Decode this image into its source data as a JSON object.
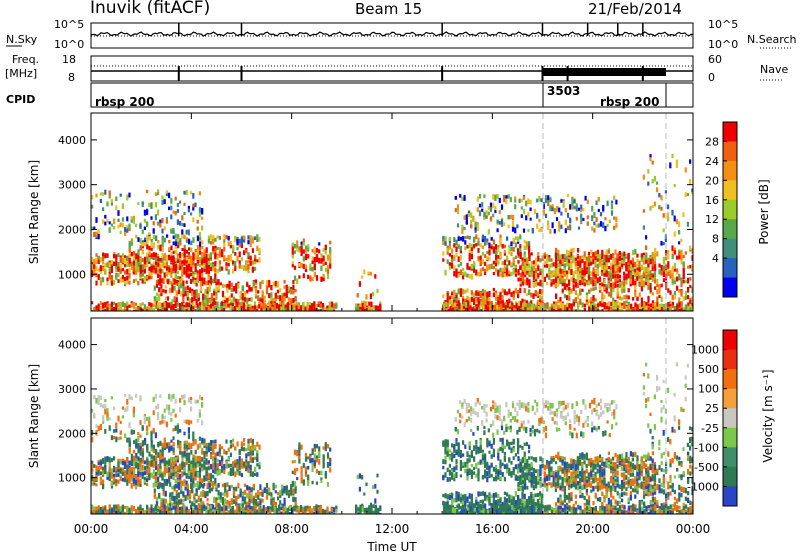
{
  "header": {
    "station": "Inuvik (fitACF)",
    "beam": "Beam 15",
    "date": "21/Feb/2014"
  },
  "noise_panel": {
    "left_label": "N.Sky",
    "right_label": "N.Search",
    "left_ticks": [
      "10^5",
      "10^0"
    ],
    "right_ticks": [
      "10^5",
      "10^0"
    ]
  },
  "freq_panel": {
    "left_label_1": "Freq.",
    "left_label_2": "[MHz]",
    "right_label": "Nave",
    "left_ticks": [
      "18",
      "8"
    ],
    "right_ticks": [
      "60",
      "0"
    ]
  },
  "cpid_panel": {
    "label": "CPID",
    "segments": [
      {
        "start_hour": 0,
        "end_hour": 18,
        "name": "rbsp 200"
      },
      {
        "start_hour": 18,
        "end_hour": 24,
        "name": "3503"
      },
      {
        "start_hour": 22,
        "end_hour": 24,
        "name": "rbsp 200"
      }
    ]
  },
  "chart_data": [
    {
      "type": "heatmap",
      "name": "power",
      "ylabel": "Slant Range [km]",
      "ylim": [
        180,
        4600
      ],
      "yticks": [
        "4000",
        "3000",
        "2000",
        "1000"
      ],
      "colorbar": {
        "label": "Power [dB]",
        "ticks": [
          "28",
          "24",
          "20",
          "16",
          "12",
          "8",
          "4"
        ],
        "colors": [
          "#0000ee",
          "#2a60c0",
          "#3f8f7a",
          "#5aa84a",
          "#9ccc2a",
          "#f0c020",
          "#f39010",
          "#f06010",
          "#ee0000"
        ]
      }
    },
    {
      "type": "heatmap",
      "name": "velocity",
      "ylabel": "Slant Range [km]",
      "ylim": [
        180,
        4600
      ],
      "yticks": [
        "4000",
        "3000",
        "2000",
        "1000"
      ],
      "colorbar": {
        "label": "Velocity [m s⁻¹]",
        "ticks": [
          "1000",
          "500",
          "100",
          "25",
          "-25",
          "-100",
          "-500",
          "-1000"
        ],
        "colors": [
          "#2846c8",
          "#2f7a55",
          "#3f8f6a",
          "#7cc84a",
          "#c8c8c0",
          "#f5a03a",
          "#f07010",
          "#e83010",
          "#ee0000"
        ]
      }
    }
  ],
  "time_axis": {
    "xlabel": "Time UT",
    "ticks": [
      "00:00",
      "04:00",
      "08:00",
      "12:00",
      "16:00",
      "20:00",
      "00:00"
    ],
    "xlim_hours": [
      0,
      24
    ]
  }
}
